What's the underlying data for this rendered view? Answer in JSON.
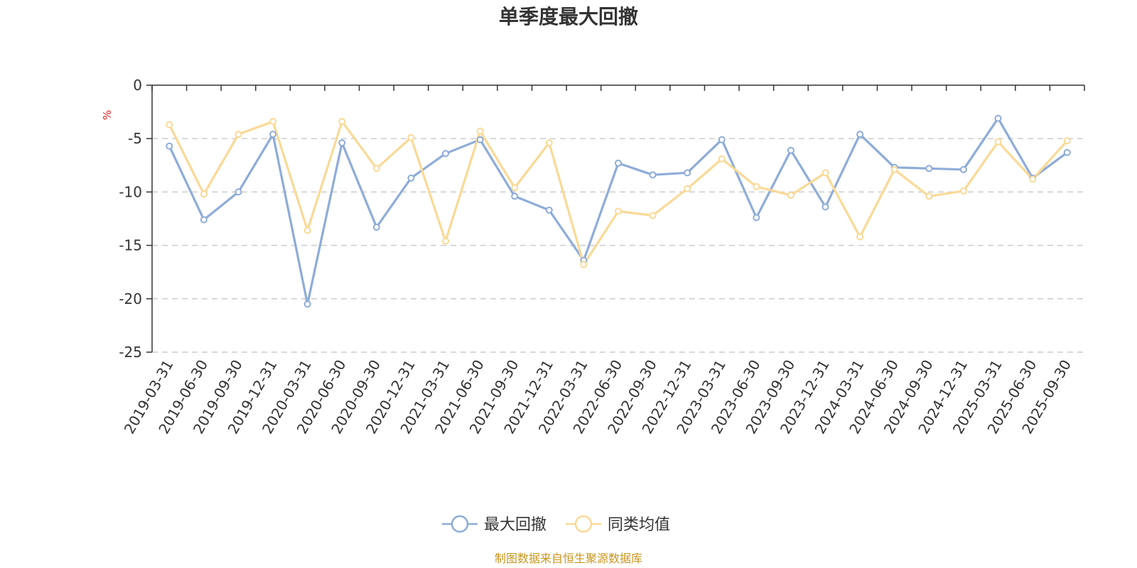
{
  "chart_data": {
    "type": "line",
    "title": "单季度最大回撤",
    "ylabel": "%",
    "xlabel": "",
    "ylim": [
      -25,
      0
    ],
    "yticks": [
      0,
      -5,
      -10,
      -15,
      -20,
      -25
    ],
    "grid": "horizontal dashed",
    "legend_position": "bottom-center",
    "categories": [
      "2019-03-31",
      "2019-06-30",
      "2019-09-30",
      "2019-12-31",
      "2020-03-31",
      "2020-06-30",
      "2020-09-30",
      "2020-12-31",
      "2021-03-31",
      "2021-06-30",
      "2021-09-30",
      "2021-12-31",
      "2022-03-31",
      "2022-06-30",
      "2022-09-30",
      "2022-12-31",
      "2023-03-31",
      "2023-06-30",
      "2023-09-30",
      "2023-12-31",
      "2024-03-31",
      "2024-06-30",
      "2024-09-30",
      "2024-12-31",
      "2025-03-31",
      "2025-06-30",
      "2025-09-30"
    ],
    "series": [
      {
        "name": "最大回撤",
        "color": "#8eacd8",
        "values": [
          -5.7,
          -12.6,
          -10.0,
          -4.6,
          -20.5,
          -5.4,
          -13.3,
          -8.7,
          -6.4,
          -5.1,
          -10.4,
          -11.7,
          -16.4,
          -7.3,
          -8.4,
          -8.2,
          -5.1,
          -12.4,
          -6.1,
          -11.4,
          -4.6,
          -7.7,
          -7.8,
          -7.9,
          -3.1,
          -8.7,
          -6.3
        ]
      },
      {
        "name": "同类均值",
        "color": "#fad996",
        "values": [
          -3.7,
          -10.2,
          -4.6,
          -3.4,
          -13.6,
          -3.4,
          -7.8,
          -4.9,
          -14.6,
          -4.3,
          -9.6,
          -5.4,
          -16.8,
          -11.8,
          -12.2,
          -9.7,
          -6.9,
          -9.5,
          -10.3,
          -8.2,
          -14.2,
          -7.9,
          -10.4,
          -9.9,
          -5.3,
          -8.8,
          -5.2
        ]
      }
    ],
    "source": "制图数据来自恒生聚源数据库",
    "source_color": "#c8961e",
    "unit_color": "#e02020"
  }
}
